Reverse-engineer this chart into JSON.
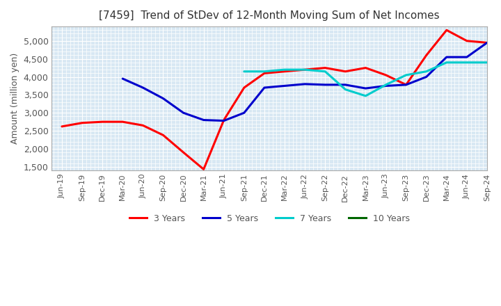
{
  "title": "[7459]  Trend of StDev of 12-Month Moving Sum of Net Incomes",
  "ylabel": "Amount (million yen)",
  "ylim": [
    1400,
    5400
  ],
  "yticks": [
    1500,
    2000,
    2500,
    3000,
    3500,
    4000,
    4500,
    5000
  ],
  "background_color": "#d8e8f3",
  "grid_color": "#ffffff",
  "xtick_labels": [
    "Jun-19",
    "Sep-19",
    "Dec-19",
    "Mar-20",
    "Jun-20",
    "Sep-20",
    "Dec-20",
    "Mar-21",
    "Jun-21",
    "Sep-21",
    "Dec-21",
    "Mar-22",
    "Jun-22",
    "Sep-22",
    "Dec-22",
    "Mar-23",
    "Jun-23",
    "Sep-23",
    "Dec-23",
    "Mar-24",
    "Jun-24",
    "Sep-24"
  ],
  "series": {
    "3 Years": {
      "color": "#ff0000",
      "linewidth": 2.2,
      "xi": [
        0,
        1,
        2,
        3,
        4,
        5,
        6,
        7,
        8,
        9,
        10,
        11,
        12,
        13,
        14,
        15,
        16,
        17,
        18,
        19,
        20,
        21
      ],
      "y": [
        2620,
        2720,
        2750,
        2750,
        2650,
        2380,
        1900,
        1430,
        2800,
        3700,
        4100,
        4150,
        4200,
        4250,
        4150,
        4250,
        4050,
        3780,
        4600,
        5300,
        5000,
        4950
      ]
    },
    "5 Years": {
      "color": "#0000cc",
      "linewidth": 2.2,
      "xi": [
        3,
        4,
        5,
        6,
        7,
        8,
        9,
        10,
        11,
        12,
        13,
        14,
        15,
        16,
        17,
        18,
        19,
        20,
        21
      ],
      "y": [
        3950,
        3700,
        3400,
        3000,
        2800,
        2780,
        3000,
        3700,
        3750,
        3800,
        3780,
        3780,
        3680,
        3750,
        3780,
        4000,
        4550,
        4550,
        4950
      ]
    },
    "7 Years": {
      "color": "#00cccc",
      "linewidth": 2.2,
      "xi": [
        9,
        10,
        11,
        12,
        13,
        14,
        15,
        16,
        17,
        18,
        19,
        20,
        21
      ],
      "y": [
        4150,
        4150,
        4200,
        4200,
        4150,
        3650,
        3470,
        3780,
        4050,
        4150,
        4400,
        4400,
        4400
      ]
    },
    "10 Years": {
      "color": "#006600",
      "linewidth": 2.2,
      "xi": [],
      "y": []
    }
  },
  "legend_labels": [
    "3 Years",
    "5 Years",
    "7 Years",
    "10 Years"
  ],
  "legend_colors": [
    "#ff0000",
    "#0000cc",
    "#00cccc",
    "#006600"
  ]
}
